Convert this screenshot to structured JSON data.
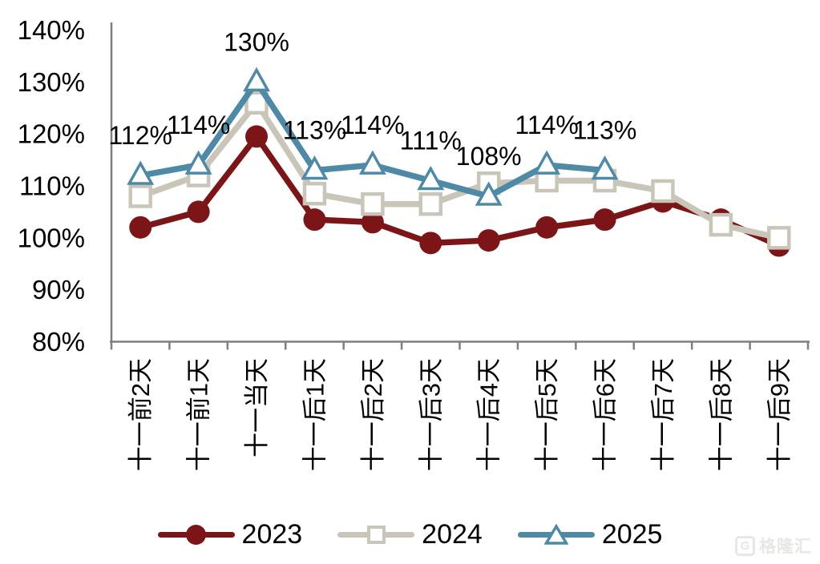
{
  "chart_data": {
    "type": "line",
    "title": "",
    "categories": [
      "十一前2天",
      "十一前1天",
      "十一当天",
      "十一后1天",
      "十一后2天",
      "十一后3天",
      "十一后4天",
      "十一后5天",
      "十一后6天",
      "十一后7天",
      "十一后8天",
      "十一后9天"
    ],
    "series": [
      {
        "name": "2023",
        "color": "#7C1518",
        "marker": "circle",
        "values": [
          102,
          105,
          119.5,
          103.5,
          103,
          99,
          99.5,
          102,
          103.5,
          107,
          103.5,
          98.5
        ]
      },
      {
        "name": "2024",
        "color": "#C9C5B8",
        "marker": "square",
        "values": [
          108,
          112,
          126,
          108.5,
          106.5,
          106.5,
          110.5,
          111,
          111,
          109,
          102.5,
          100
        ]
      },
      {
        "name": "2025",
        "color": "#4E8AA6",
        "marker": "triangle",
        "values": [
          112,
          114,
          130,
          113,
          114,
          111,
          108,
          114,
          113
        ],
        "data_labels": [
          "112%",
          "114%",
          "130%",
          "113%",
          "114%",
          "111%",
          "108%",
          "114%",
          "113%"
        ]
      }
    ],
    "yticks": [
      "140%",
      "130%",
      "120%",
      "110%",
      "100%",
      "90%",
      "80%"
    ],
    "ylim": [
      80,
      140
    ],
    "grid": false,
    "legend_position": "bottom",
    "axis_color": "#7F7F7F",
    "label_color": "#000000"
  },
  "watermark": {
    "logo_letter": "G",
    "text": "格隆汇"
  }
}
